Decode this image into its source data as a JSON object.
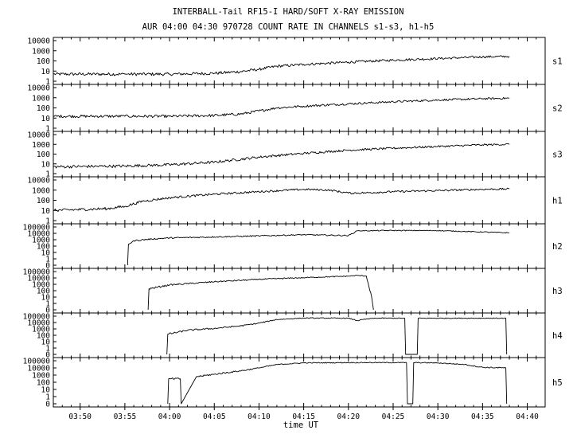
{
  "chart_data": {
    "type": "line",
    "title": "INTERBALL-Tail RF15-I HARD/SOFT X-RAY EMISSION",
    "subtitle": "AUR 04:00 04:30 970728  COUNT RATE IN CHANNELS s1-s3, h1-h5",
    "xlabel": "time UT",
    "x_range": [
      "03:47",
      "04:42"
    ],
    "x_ticks": [
      "03:50",
      "03:55",
      "04:00",
      "04:05",
      "04:10",
      "04:15",
      "04:20",
      "04:25",
      "04:30",
      "04:35",
      "04:40"
    ],
    "y_scale": "log",
    "grid": false,
    "panels": [
      {
        "name": "s1",
        "y_ticks": [
          "10000",
          "1000",
          "100",
          "10",
          "1"
        ],
        "series": {
          "x": [
            "03:47",
            "03:55",
            "04:00",
            "04:05",
            "04:08",
            "04:10",
            "04:12",
            "04:15",
            "04:20",
            "04:25",
            "04:30",
            "04:35",
            "04:38"
          ],
          "y": [
            5,
            5,
            5,
            6,
            9,
            15,
            30,
            45,
            75,
            120,
            170,
            250,
            280
          ]
        }
      },
      {
        "name": "s2",
        "y_ticks": [
          "10000",
          "1000",
          "100",
          "10",
          "1"
        ],
        "series": {
          "x": [
            "03:47",
            "03:55",
            "04:00",
            "04:05",
            "04:08",
            "04:10",
            "04:12",
            "04:15",
            "04:20",
            "04:25",
            "04:30",
            "04:35",
            "04:38"
          ],
          "y": [
            15,
            15,
            15,
            18,
            25,
            50,
            100,
            150,
            250,
            400,
            600,
            800,
            900
          ]
        }
      },
      {
        "name": "s3",
        "y_ticks": [
          "10000",
          "1000",
          "100",
          "10",
          "1"
        ],
        "series": {
          "x": [
            "03:47",
            "03:55",
            "04:00",
            "04:05",
            "04:08",
            "04:10",
            "04:15",
            "04:20",
            "04:25",
            "04:30",
            "04:35",
            "04:38"
          ],
          "y": [
            5,
            6,
            8,
            15,
            30,
            50,
            120,
            250,
            400,
            600,
            900,
            1000
          ]
        }
      },
      {
        "name": "h1",
        "y_ticks": [
          "10000",
          "1000",
          "100",
          "10",
          "1"
        ],
        "series": {
          "x": [
            "03:47",
            "03:53",
            "03:55",
            "03:57",
            "04:00",
            "04:05",
            "04:10",
            "04:15",
            "04:18",
            "04:20",
            "04:22",
            "04:25",
            "04:30",
            "04:35",
            "04:38"
          ],
          "y": [
            10,
            15,
            25,
            80,
            180,
            400,
            700,
            1200,
            1000,
            500,
            550,
            700,
            900,
            1200,
            1300
          ]
        }
      },
      {
        "name": "h2",
        "y_ticks": [
          "100000",
          "10000",
          "1000",
          "100",
          "10",
          "1",
          "0"
        ],
        "series": {
          "x": [
            "03:55.3",
            "03:55.4",
            "03:56",
            "03:58",
            "04:00",
            "04:05",
            "04:10",
            "04:15",
            "04:20",
            "04:21",
            "04:25",
            "04:30",
            "04:35",
            "04:38"
          ],
          "y": [
            0,
            200,
            700,
            1300,
            1900,
            2700,
            4000,
            6000,
            4500,
            25000,
            28000,
            27000,
            16000,
            12000
          ]
        }
      },
      {
        "name": "h3",
        "y_ticks": [
          "100000",
          "10000",
          "1000",
          "100",
          "10",
          "1",
          "0"
        ],
        "series": {
          "x": [
            "03:57.6",
            "03:57.7",
            "04:00",
            "04:05",
            "04:10",
            "04:15",
            "04:20",
            "04:21",
            "04:22",
            "04:22.6",
            "04:22.8"
          ],
          "y": [
            0,
            200,
            800,
            2500,
            6000,
            11000,
            19000,
            25000,
            20000,
            10,
            0
          ]
        }
      },
      {
        "name": "h4",
        "y_ticks": [
          "100000",
          "10000",
          "1000",
          "100",
          "10",
          "1",
          "0"
        ],
        "series": {
          "x": [
            "03:59.7",
            "03:59.8",
            "04:02",
            "04:05",
            "04:08",
            "04:10",
            "04:12",
            "04:15",
            "04:20",
            "04:21",
            "04:22",
            "04:23",
            "04:26.3",
            "04:26.4",
            "04:27.7",
            "04:27.8",
            "04:37.6",
            "04:37.7"
          ],
          "y": [
            0,
            150,
            600,
            1200,
            3000,
            8000,
            30000,
            50000,
            48000,
            20000,
            35000,
            48000,
            48000,
            0,
            0,
            48000,
            48000,
            0
          ]
        }
      },
      {
        "name": "h5",
        "y_ticks": [
          "100000",
          "10000",
          "1000",
          "100",
          "10",
          "1",
          "0"
        ],
        "series": {
          "x": [
            "03:59.8",
            "03:59.9",
            "04:01.2",
            "04:01.3",
            "04:03",
            "04:05",
            "04:08",
            "04:10",
            "04:12",
            "04:15",
            "04:20",
            "04:25",
            "04:26.5",
            "04:26.6",
            "04:27.2",
            "04:27.3",
            "04:30",
            "04:33",
            "04:35",
            "04:37.6",
            "04:37.7"
          ],
          "y": [
            0,
            300,
            300,
            0,
            600,
            1300,
            4000,
            10000,
            30000,
            50000,
            55000,
            55000,
            55000,
            0,
            0,
            55000,
            50000,
            30000,
            12000,
            10000,
            0
          ]
        }
      }
    ]
  }
}
